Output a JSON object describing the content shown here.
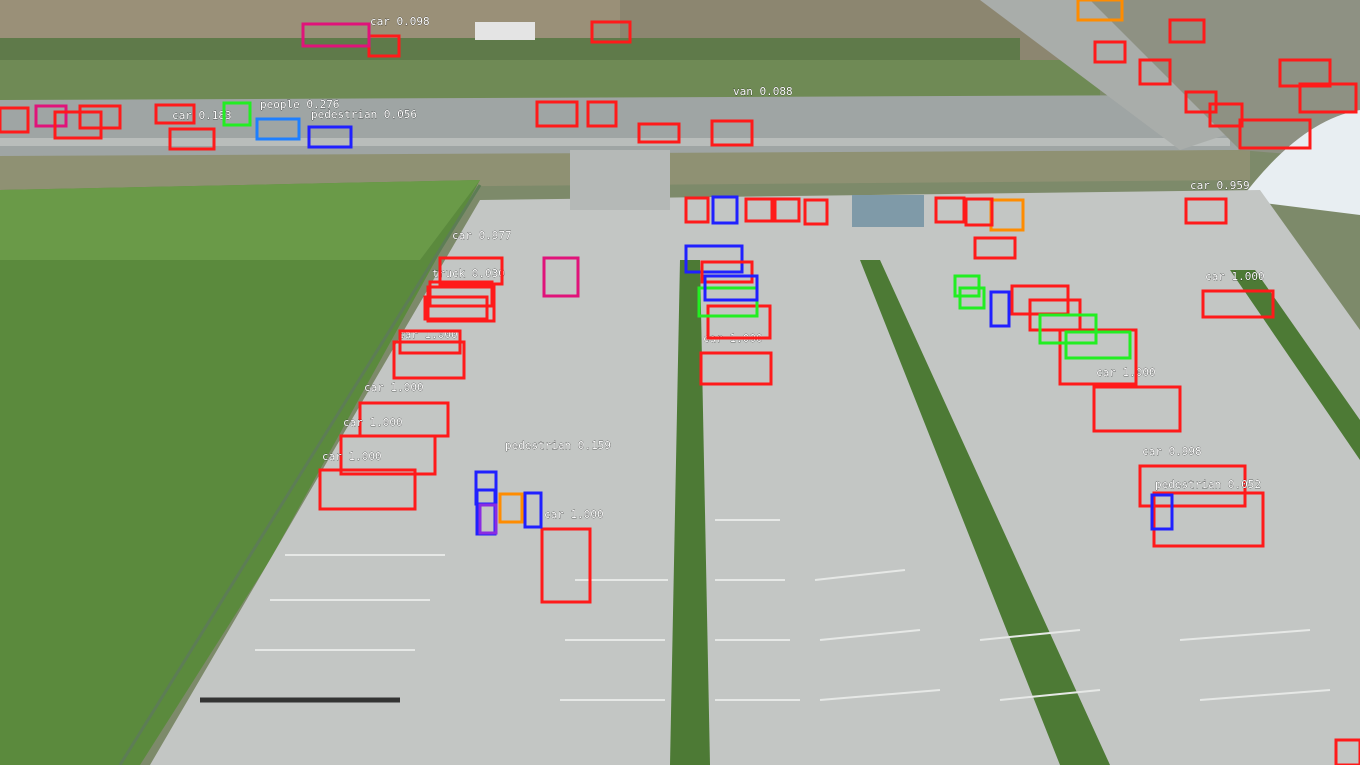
{
  "image": {
    "description_type": "aerial drone photo of a parking lot with object-detection boxes",
    "colors": {
      "car": "#ff1a1a",
      "pedestrian": "#2020ff",
      "van": "#ff1a1a",
      "truck": "#ff1a1a",
      "tricycle": "#22ee22",
      "awning-tricycle": "#ff8c00",
      "bus": "#e0137a",
      "people": "#1e7fff",
      "motor": "#2bd6c8"
    },
    "detections": [
      {
        "cls": "car",
        "label": "car 1.000",
        "color": "car"
      },
      {
        "cls": "car",
        "label": "car 1.000",
        "color": "car"
      },
      {
        "cls": "car",
        "label": "car 1.000",
        "color": "car"
      },
      {
        "cls": "car",
        "label": "car 1.000",
        "color": "car"
      },
      {
        "cls": "car",
        "label": "car 1.000",
        "color": "car"
      },
      {
        "cls": "car",
        "label": "car 1.000",
        "color": "car"
      },
      {
        "cls": "car",
        "label": "car 1.000",
        "color": "car"
      },
      {
        "cls": "car",
        "label": "car 1.000",
        "color": "car"
      },
      {
        "cls": "car",
        "label": "car 0.998",
        "color": "car"
      },
      {
        "cls": "car",
        "label": "car 0.998",
        "color": "car"
      },
      {
        "cls": "car",
        "label": "car 0.977",
        "color": "car"
      },
      {
        "cls": "car",
        "label": "car 0.959",
        "color": "car"
      },
      {
        "cls": "car",
        "label": "car 0.098",
        "color": "car"
      },
      {
        "cls": "car",
        "label": "car 0.183",
        "color": "car"
      },
      {
        "cls": "car",
        "label": "car 0.084",
        "color": "car"
      },
      {
        "cls": "pedestrian",
        "label": "pedestrian 0.159",
        "color": "pedestrian"
      },
      {
        "cls": "pedestrian",
        "label": "pedestrian 0.052",
        "color": "pedestrian"
      },
      {
        "cls": "pedestrian",
        "label": "pedestrian 0.056",
        "color": "pedestrian"
      },
      {
        "cls": "pedestrian",
        "label": "pedestrian 0.031",
        "color": "pedestrian"
      },
      {
        "cls": "van",
        "label": "van 0.088",
        "color": "van"
      },
      {
        "cls": "van",
        "label": "van 0.078",
        "color": "van"
      },
      {
        "cls": "van",
        "label": "van 0.077",
        "color": "van"
      },
      {
        "cls": "truck",
        "label": "truck 0.030",
        "color": "truck"
      },
      {
        "cls": "truck",
        "label": "truck 0.959",
        "color": "truck"
      },
      {
        "cls": "awning-tricycle",
        "label": "awning-tricycle 0.069",
        "color": "awning-tricycle"
      },
      {
        "cls": "tricycle",
        "label": "tricycle 0.077",
        "color": "tricycle"
      },
      {
        "cls": "people",
        "label": "people 0.276",
        "color": "people"
      },
      {
        "cls": "tricycle",
        "label": "tricycle 0.172",
        "color": "tricycle"
      }
    ]
  }
}
